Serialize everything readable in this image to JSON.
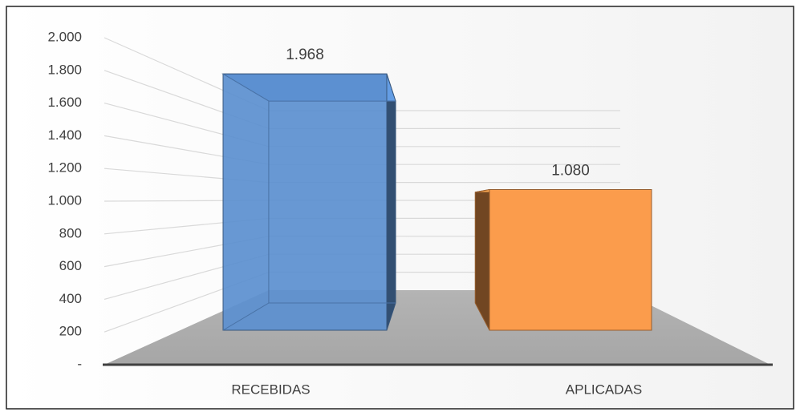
{
  "chart_data": {
    "type": "bar3d",
    "categories": [
      "RECEBIDAS",
      "APLICADAS"
    ],
    "values": [
      1968,
      1080
    ],
    "value_labels": [
      "1.968",
      "1.080"
    ],
    "colors": [
      "#5b8fcf",
      "#fb9c4c"
    ],
    "ylim": [
      0,
      2000
    ],
    "yticks": [
      {
        "value": 0,
        "label": "-"
      },
      200,
      400,
      600,
      800,
      {
        "value": 1000,
        "label": "1.000"
      },
      {
        "value": 1200,
        "label": "1.200"
      },
      {
        "value": 1400,
        "label": "1.400"
      },
      {
        "value": 1600,
        "label": "1.600"
      },
      {
        "value": 1800,
        "label": "1.800"
      },
      {
        "value": 2000,
        "label": "2.000"
      }
    ],
    "grid": true
  }
}
